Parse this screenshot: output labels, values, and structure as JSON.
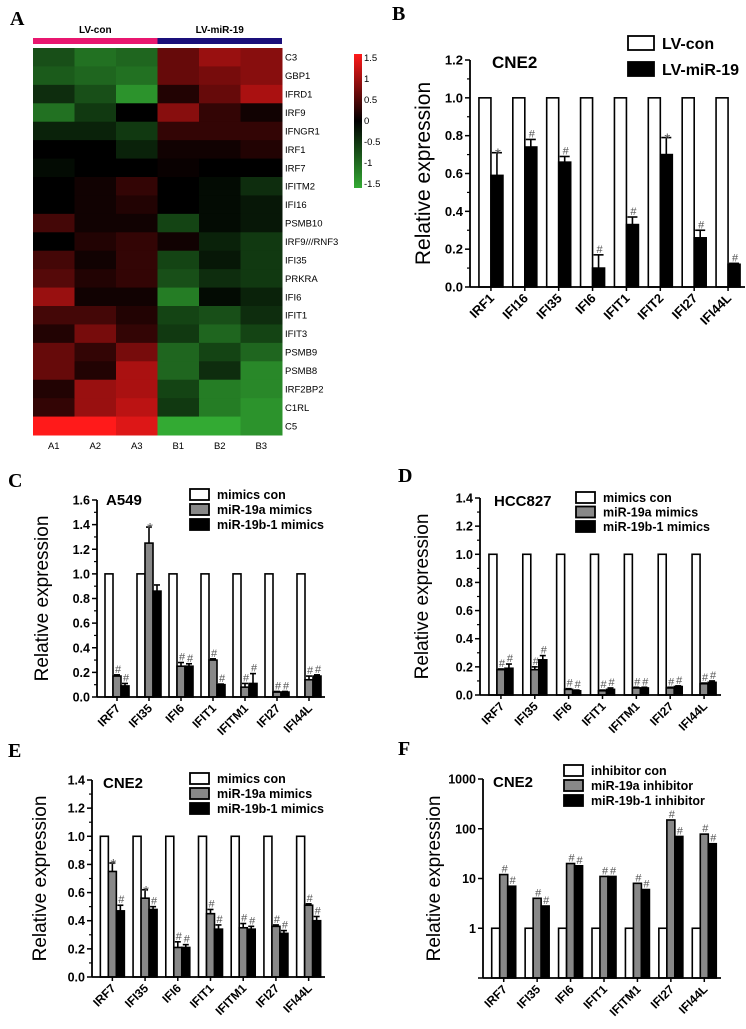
{
  "panel_labels": [
    "A",
    "B",
    "C",
    "D",
    "E",
    "F"
  ],
  "colors": {
    "con": "#ffffff",
    "mir19a": "#888888",
    "mir19b": "#000000",
    "lvcon_bar": "#e8176f",
    "lvmir_bar": "#1a0f7a",
    "heat_high": "#ff1a1a",
    "heat_mid": "#000000",
    "heat_low": "#33aa33"
  },
  "chart_data": [
    {
      "type": "heatmap",
      "groups": [
        "LV-con",
        "LV-miR-19"
      ],
      "columns": [
        "A1",
        "A2",
        "A3",
        "B1",
        "B2",
        "B3"
      ],
      "rows": [
        "C3",
        "GBP1",
        "IFRD1",
        "IRF9",
        "IFNGR1",
        "IRF1",
        "IRF7",
        "IFITM2",
        "IFI16",
        "PSMB10",
        "IRF9///RNF3",
        "IFI35",
        "PRKRA",
        "IFI6",
        "IFIT1",
        "IFIT3",
        "PSMB9",
        "PSMB8",
        "IRF2BP2",
        "C1RL",
        "C5"
      ],
      "values": [
        [
          -0.7,
          -1.0,
          -0.9,
          0.6,
          0.9,
          0.8
        ],
        [
          -0.8,
          -0.9,
          -1.0,
          0.6,
          0.7,
          0.8
        ],
        [
          -0.4,
          -0.7,
          -1.3,
          0.2,
          0.6,
          1.0
        ],
        [
          -1.0,
          -0.5,
          0.0,
          0.8,
          0.3,
          0.1
        ],
        [
          -0.3,
          -0.3,
          -0.5,
          0.3,
          0.3,
          0.3
        ],
        [
          0.0,
          0.0,
          -0.3,
          0.1,
          0.1,
          0.2
        ],
        [
          -0.1,
          0.0,
          0.0,
          0.05,
          0.0,
          0.0
        ],
        [
          0.0,
          0.1,
          0.3,
          0.0,
          -0.1,
          -0.4
        ],
        [
          0.0,
          0.1,
          0.2,
          0.0,
          -0.1,
          -0.2
        ],
        [
          0.4,
          0.1,
          0.1,
          -0.6,
          -0.1,
          -0.2
        ],
        [
          0.0,
          0.2,
          0.3,
          0.1,
          -0.3,
          -0.5
        ],
        [
          0.4,
          0.1,
          0.3,
          -0.6,
          -0.2,
          -0.5
        ],
        [
          0.5,
          0.2,
          0.3,
          -0.7,
          -0.4,
          -0.5
        ],
        [
          0.9,
          0.1,
          0.1,
          -1.1,
          -0.1,
          -0.3
        ],
        [
          0.4,
          0.4,
          0.2,
          -0.6,
          -0.7,
          -0.4
        ],
        [
          0.2,
          0.7,
          0.3,
          -0.5,
          -0.9,
          -0.6
        ],
        [
          0.6,
          0.3,
          0.7,
          -0.9,
          -0.6,
          -0.9
        ],
        [
          0.6,
          0.2,
          1.0,
          -0.9,
          -0.4,
          -1.2
        ],
        [
          0.2,
          0.9,
          1.0,
          -0.6,
          -1.1,
          -1.2
        ],
        [
          0.3,
          0.9,
          1.1,
          -0.5,
          -1.1,
          -1.3
        ],
        [
          1.5,
          1.5,
          1.3,
          -1.5,
          -1.5,
          -1.3
        ]
      ],
      "colorbar_ticks": [
        "1.5",
        "1",
        "0.5",
        "0",
        "-0.5",
        "-1",
        "-1.5"
      ],
      "range": [
        -1.5,
        1.5
      ]
    },
    {
      "type": "bar",
      "title": "CNE2",
      "ylabel": "Relative expression",
      "yscale": "linear",
      "ylim": [
        0,
        1.2
      ],
      "yticks": [
        "0.0",
        "0.2",
        "0.4",
        "0.6",
        "0.8",
        "1.0",
        "1.2"
      ],
      "categories": [
        "IRF1",
        "IFI16",
        "IFI35",
        "IFI6",
        "IFIT1",
        "IFIT2",
        "IFI27",
        "IFI44L"
      ],
      "legend": "top-right",
      "series": [
        {
          "name": "LV-con",
          "color": "#ffffff",
          "values": [
            1,
            1,
            1,
            1,
            1,
            1,
            1,
            1
          ],
          "errors": [
            0,
            0,
            0,
            0,
            0,
            0,
            0,
            0
          ],
          "marks": [
            "",
            "",
            "",
            "",
            "",
            "",
            "",
            ""
          ]
        },
        {
          "name": "LV-miR-19",
          "color": "#000000",
          "values": [
            0.59,
            0.74,
            0.66,
            0.1,
            0.33,
            0.7,
            0.26,
            0.12
          ],
          "errors": [
            0.12,
            0.04,
            0.03,
            0.07,
            0.04,
            0.09,
            0.04,
            0.005
          ],
          "marks": [
            "*",
            "#",
            "#",
            "#",
            "#",
            "*",
            "#",
            "#"
          ]
        }
      ]
    },
    {
      "type": "bar",
      "title": "A549",
      "ylabel": "Relative expression",
      "yscale": "linear",
      "ylim": [
        0,
        1.6
      ],
      "yticks": [
        "0.0",
        "0.2",
        "0.4",
        "0.6",
        "0.8",
        "1.0",
        "1.2",
        "1.4",
        "1.6"
      ],
      "categories": [
        "IRF7",
        "IFI35",
        "IFI6",
        "IFIT1",
        "IFITM1",
        "IFI27",
        "IFI44L"
      ],
      "legend": "top-right",
      "series": [
        {
          "name": "mimics con",
          "color": "#ffffff",
          "values": [
            1,
            1,
            1,
            1,
            1,
            1,
            1
          ],
          "errors": [
            0,
            0,
            0,
            0,
            0,
            0,
            0
          ],
          "marks": [
            "",
            "",
            "",
            "",
            "",
            "",
            ""
          ]
        },
        {
          "name": "miR-19a mimics",
          "color": "#888888",
          "values": [
            0.17,
            1.25,
            0.25,
            0.3,
            0.08,
            0.04,
            0.14
          ],
          "errors": [
            0.01,
            0.13,
            0.03,
            0.01,
            0.03,
            0.005,
            0.03
          ],
          "marks": [
            "#",
            "*",
            "#",
            "#",
            "#",
            "#",
            "#"
          ]
        },
        {
          "name": "miR-19b-1 mimics",
          "color": "#000000",
          "values": [
            0.09,
            0.86,
            0.25,
            0.1,
            0.11,
            0.04,
            0.17
          ],
          "errors": [
            0.02,
            0.05,
            0.02,
            0.005,
            0.08,
            0.005,
            0.01
          ],
          "marks": [
            "#",
            "",
            "#",
            "#",
            "#",
            "#",
            "#"
          ]
        }
      ]
    },
    {
      "type": "bar",
      "title": "HCC827",
      "ylabel": "Relative expression",
      "yscale": "linear",
      "ylim": [
        0,
        1.4
      ],
      "yticks": [
        "0.0",
        "0.2",
        "0.4",
        "0.6",
        "0.8",
        "1.0",
        "1.2",
        "1.4"
      ],
      "categories": [
        "IRF7",
        "IFI35",
        "IFI6",
        "IFIT1",
        "IFITM1",
        "IFI27",
        "IFI44L"
      ],
      "legend": "top-right",
      "series": [
        {
          "name": "mimics con",
          "color": "#ffffff",
          "values": [
            1,
            1,
            1,
            1,
            1,
            1,
            1
          ],
          "errors": [
            0,
            0,
            0,
            0,
            0,
            0,
            0
          ],
          "marks": [
            "",
            "",
            "",
            "",
            "",
            "",
            ""
          ]
        },
        {
          "name": "miR-19a mimics",
          "color": "#888888",
          "values": [
            0.18,
            0.18,
            0.04,
            0.03,
            0.05,
            0.05,
            0.08
          ],
          "errors": [
            0.005,
            0.02,
            0.005,
            0.005,
            0.005,
            0.005,
            0.005
          ],
          "marks": [
            "#",
            "#",
            "#",
            "#",
            "#",
            "#",
            "#"
          ]
        },
        {
          "name": "miR-19b-1 mimics",
          "color": "#000000",
          "values": [
            0.19,
            0.25,
            0.03,
            0.04,
            0.05,
            0.06,
            0.09
          ],
          "errors": [
            0.03,
            0.03,
            0.005,
            0.01,
            0.005,
            0.005,
            0.01
          ],
          "marks": [
            "#",
            "#",
            "#",
            "#",
            "#",
            "#",
            "#"
          ]
        }
      ]
    },
    {
      "type": "bar",
      "title": "CNE2",
      "ylabel": "Relative expression",
      "yscale": "linear",
      "ylim": [
        0,
        1.4
      ],
      "yticks": [
        "0.0",
        "0.2",
        "0.4",
        "0.6",
        "0.8",
        "1.0",
        "1.2",
        "1.4"
      ],
      "categories": [
        "IRF7",
        "IFI35",
        "IFI6",
        "IFIT1",
        "IFITM1",
        "IFI27",
        "IFI44L"
      ],
      "legend": "top-right",
      "series": [
        {
          "name": "mimics con",
          "color": "#ffffff",
          "values": [
            1,
            1,
            1,
            1,
            1,
            1,
            1
          ],
          "errors": [
            0,
            0,
            0,
            0,
            0,
            0,
            0
          ],
          "marks": [
            "",
            "",
            "",
            "",
            "",
            "",
            ""
          ]
        },
        {
          "name": "miR-19a mimics",
          "color": "#888888",
          "values": [
            0.75,
            0.56,
            0.21,
            0.45,
            0.35,
            0.36,
            0.51
          ],
          "errors": [
            0.06,
            0.06,
            0.04,
            0.03,
            0.03,
            0.01,
            0.01
          ],
          "marks": [
            "*",
            "*",
            "#",
            "#",
            "#",
            "#",
            "#"
          ]
        },
        {
          "name": "miR-19b-1 mimics",
          "color": "#000000",
          "values": [
            0.47,
            0.48,
            0.21,
            0.34,
            0.34,
            0.31,
            0.4
          ],
          "errors": [
            0.04,
            0.02,
            0.02,
            0.03,
            0.02,
            0.02,
            0.03
          ],
          "marks": [
            "#",
            "#",
            "#",
            "#",
            "#",
            "#",
            "#"
          ]
        }
      ]
    },
    {
      "type": "bar",
      "title": "CNE2",
      "ylabel": "Relative expression",
      "yscale": "log",
      "ylim": [
        0.1,
        1000
      ],
      "yticks": [
        "1",
        "10",
        "100",
        "1000"
      ],
      "categories": [
        "IRF7",
        "IFI35",
        "IFI6",
        "IFIT1",
        "IFITM1",
        "IFI27",
        "IFI44L"
      ],
      "legend": "top-right",
      "series": [
        {
          "name": "inhibitor con",
          "color": "#ffffff",
          "values": [
            1,
            1,
            1,
            1,
            1,
            1,
            1
          ],
          "errors": [
            0,
            0,
            0,
            0,
            0,
            0,
            0
          ],
          "marks": [
            "",
            "",
            "",
            "",
            "",
            "",
            ""
          ]
        },
        {
          "name": "miR-19a inhibitor",
          "color": "#888888",
          "values": [
            12,
            4,
            20,
            11,
            8,
            150,
            78
          ],
          "errors": [
            0,
            0,
            0,
            0,
            0,
            0,
            0
          ],
          "marks": [
            "#",
            "#",
            "#",
            "#",
            "#",
            "#",
            "#"
          ]
        },
        {
          "name": "miR-19b-1 inhibitor",
          "color": "#000000",
          "values": [
            7,
            2.8,
            18,
            11,
            6,
            70,
            50
          ],
          "errors": [
            0,
            0,
            0,
            0,
            0,
            0,
            0
          ],
          "marks": [
            "#",
            "#",
            "#",
            "#",
            "#",
            "#",
            "#"
          ]
        }
      ]
    }
  ]
}
